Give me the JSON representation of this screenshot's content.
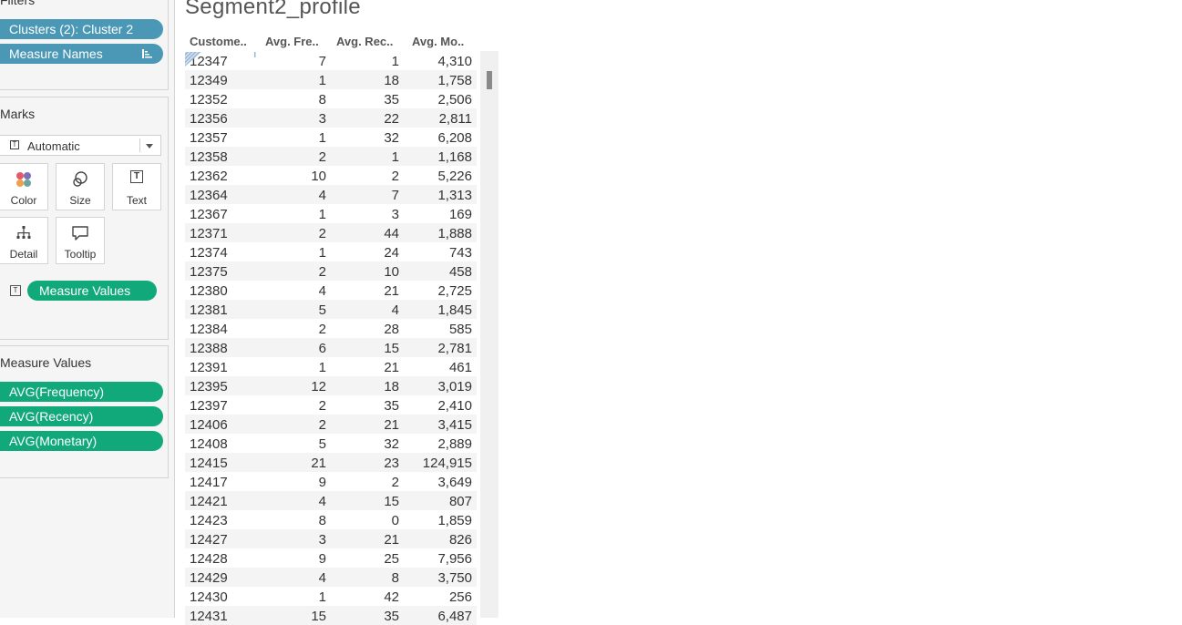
{
  "filters": {
    "title": "Filters",
    "pills": [
      {
        "label": "Clusters (2): Cluster 2"
      },
      {
        "label": "Measure Names"
      }
    ]
  },
  "marks": {
    "title": "Marks",
    "mark_type": "Automatic",
    "buttons": {
      "color": "Color",
      "size": "Size",
      "text": "Text",
      "detail": "Detail",
      "tooltip": "Tooltip"
    },
    "text_pill": "Measure Values"
  },
  "measure_values": {
    "title": "Measure Values",
    "pills": [
      "AVG(Frequency)",
      "AVG(Recency)",
      "AVG(Monetary)"
    ]
  },
  "sheet": {
    "title": "Segment2_profile",
    "headers": [
      "Custome..",
      "Avg. Fre..",
      "Avg. Rec..",
      "Avg. Mo.."
    ],
    "rows": [
      [
        "12347",
        "7",
        "1",
        "4,310"
      ],
      [
        "12349",
        "1",
        "18",
        "1,758"
      ],
      [
        "12352",
        "8",
        "35",
        "2,506"
      ],
      [
        "12356",
        "3",
        "22",
        "2,811"
      ],
      [
        "12357",
        "1",
        "32",
        "6,208"
      ],
      [
        "12358",
        "2",
        "1",
        "1,168"
      ],
      [
        "12362",
        "10",
        "2",
        "5,226"
      ],
      [
        "12364",
        "4",
        "7",
        "1,313"
      ],
      [
        "12367",
        "1",
        "3",
        "169"
      ],
      [
        "12371",
        "2",
        "44",
        "1,888"
      ],
      [
        "12374",
        "1",
        "24",
        "743"
      ],
      [
        "12375",
        "2",
        "10",
        "458"
      ],
      [
        "12380",
        "4",
        "21",
        "2,725"
      ],
      [
        "12381",
        "5",
        "4",
        "1,845"
      ],
      [
        "12384",
        "2",
        "28",
        "585"
      ],
      [
        "12388",
        "6",
        "15",
        "2,781"
      ],
      [
        "12391",
        "1",
        "21",
        "461"
      ],
      [
        "12395",
        "12",
        "18",
        "3,019"
      ],
      [
        "12397",
        "2",
        "35",
        "2,410"
      ],
      [
        "12406",
        "2",
        "21",
        "3,415"
      ],
      [
        "12408",
        "5",
        "32",
        "2,889"
      ],
      [
        "12415",
        "21",
        "23",
        "124,915"
      ],
      [
        "12417",
        "9",
        "2",
        "3,649"
      ],
      [
        "12421",
        "4",
        "15",
        "807"
      ],
      [
        "12423",
        "8",
        "0",
        "1,859"
      ],
      [
        "12427",
        "3",
        "21",
        "826"
      ],
      [
        "12428",
        "9",
        "25",
        "7,956"
      ],
      [
        "12429",
        "4",
        "8",
        "3,750"
      ],
      [
        "12430",
        "1",
        "42",
        "256"
      ],
      [
        "12431",
        "15",
        "35",
        "6,487"
      ]
    ]
  },
  "colors": {
    "filter_pill": "#4b97b6",
    "measure_pill": "#12a97a"
  }
}
